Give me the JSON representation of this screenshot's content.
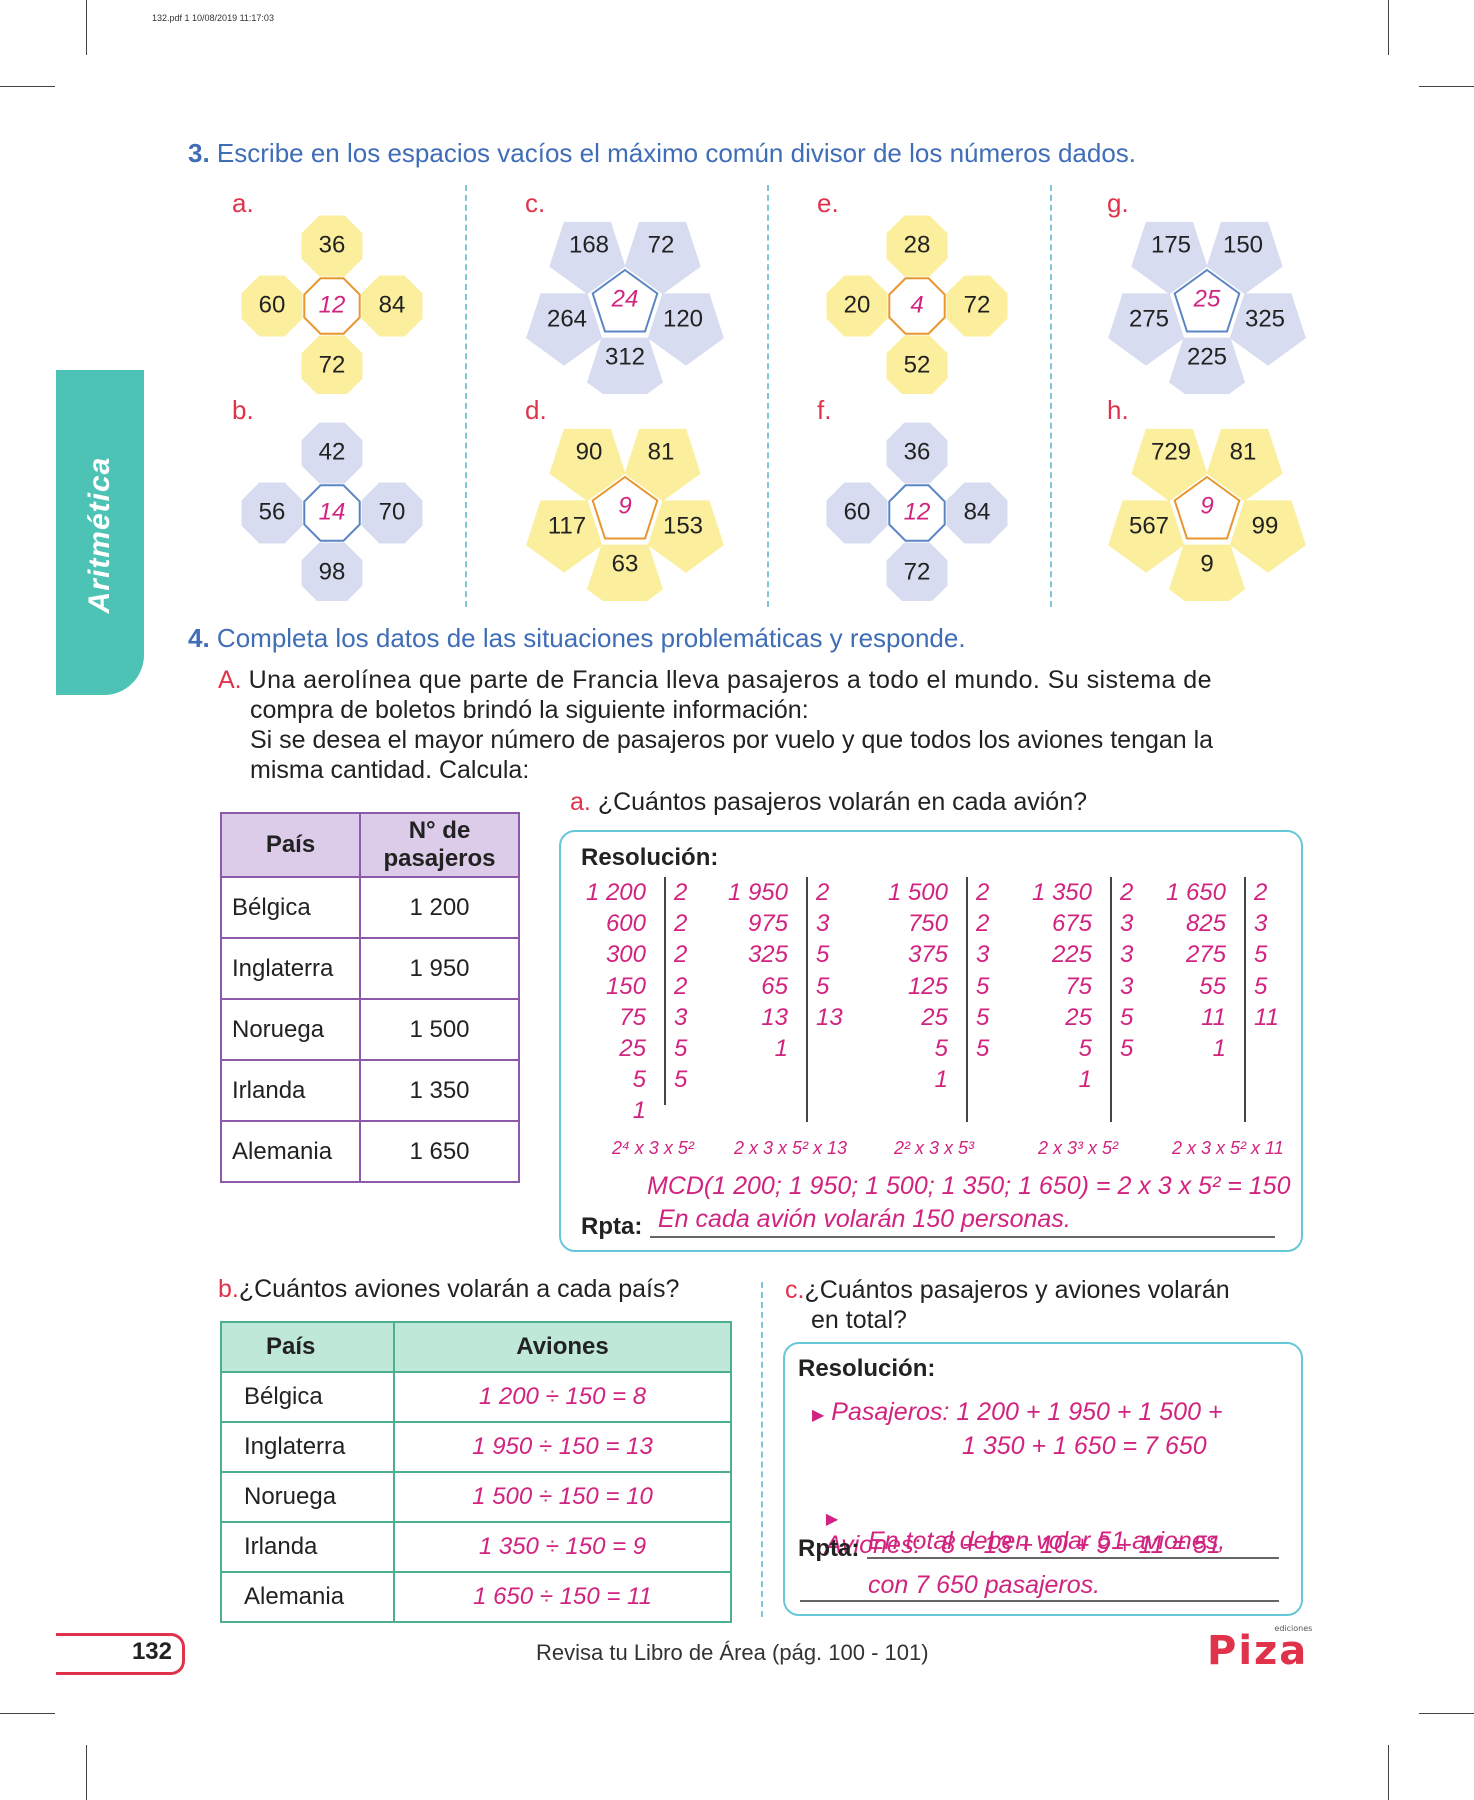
{
  "header": {
    "pdf_info": "132.pdf   1   10/08/2019   11:17:03"
  },
  "side_tab": {
    "label": "Aritmética"
  },
  "q3": {
    "number": "3.",
    "text": "Escribe en los espacios vacíos el máximo común divisor de los números dados.",
    "figures": [
      {
        "label": "a.",
        "shape": "cross",
        "color": "yellow",
        "numbers": [
          "36",
          "60",
          "84",
          "72"
        ],
        "answer": "12"
      },
      {
        "label": "b.",
        "shape": "cross",
        "color": "blue",
        "numbers": [
          "42",
          "56",
          "70",
          "98"
        ],
        "answer": "14"
      },
      {
        "label": "c.",
        "shape": "pentagon",
        "color": "blue",
        "numbers": [
          "168",
          "72",
          "264",
          "120",
          "312"
        ],
        "answer": "24"
      },
      {
        "label": "d.",
        "shape": "pentagon",
        "color": "yellow",
        "numbers": [
          "90",
          "81",
          "117",
          "153",
          "63"
        ],
        "answer": "9"
      },
      {
        "label": "e.",
        "shape": "cross",
        "color": "yellow",
        "numbers": [
          "28",
          "20",
          "72",
          "52"
        ],
        "answer": "4"
      },
      {
        "label": "f.",
        "shape": "cross",
        "color": "blue",
        "numbers": [
          "36",
          "60",
          "84",
          "72"
        ],
        "answer": "12"
      },
      {
        "label": "g.",
        "shape": "pentagon",
        "color": "blue",
        "numbers": [
          "175",
          "150",
          "275",
          "325",
          "225"
        ],
        "answer": "25"
      },
      {
        "label": "h.",
        "shape": "pentagon",
        "color": "yellow",
        "numbers": [
          "729",
          "81",
          "567",
          "99",
          "9"
        ],
        "answer": "9"
      }
    ]
  },
  "q4": {
    "number": "4.",
    "text": "Completa los datos de las situaciones problemáticas y responde.",
    "A_label": "A.",
    "A_line1": "Una aerolínea que parte de Francia lleva pasajeros a todo el mundo. Su sistema de",
    "A_line2": "compra de boletos brindó la siguiente información:",
    "A_line3": "Si se desea el mayor número de pasajeros por vuelo y que todos los aviones tengan la",
    "A_line4": "misma cantidad. Calcula:",
    "table1": {
      "headers": [
        "País",
        "N° de pasajeros"
      ],
      "rows": [
        [
          "Bélgica",
          "1 200"
        ],
        [
          "Inglaterra",
          "1 950"
        ],
        [
          "Noruega",
          "1 500"
        ],
        [
          "Irlanda",
          "1 350"
        ],
        [
          "Alemania",
          "1 650"
        ]
      ]
    },
    "a": {
      "label": "a.",
      "question": "¿Cuántos pasajeros volarán en cada avión?",
      "resolution_label": "Resolución:",
      "decompositions": [
        {
          "left": [
            "1 200",
            "600",
            "300",
            "150",
            "75",
            "25",
            "5",
            "1"
          ],
          "right": [
            "2",
            "2",
            "2",
            "2",
            "3",
            "5",
            "5"
          ],
          "factors": "2⁴ x 3 x 5²"
        },
        {
          "left": [
            "1 950",
            "975",
            "325",
            "65",
            "13",
            "1"
          ],
          "right": [
            "2",
            "3",
            "5",
            "5",
            "13"
          ],
          "factors": "2 x 3 x 5² x 13"
        },
        {
          "left": [
            "1 500",
            "750",
            "375",
            "125",
            "25",
            "5",
            "1"
          ],
          "right": [
            "2",
            "2",
            "3",
            "5",
            "5",
            "5"
          ],
          "factors": "2² x 3 x 5³"
        },
        {
          "left": [
            "1 350",
            "675",
            "225",
            "75",
            "25",
            "5",
            "1"
          ],
          "right": [
            "2",
            "3",
            "3",
            "3",
            "5",
            "5"
          ],
          "factors": "2 x 3³ x 5²"
        },
        {
          "left": [
            "1 650",
            "825",
            "275",
            "55",
            "11",
            "1"
          ],
          "right": [
            "2",
            "3",
            "5",
            "5",
            "11"
          ],
          "factors": "2 x 3 x 5² x 11"
        }
      ],
      "mcd": "MCD(1 200; 1 950; 1 500; 1 350; 1 650) = 2 x 3 x 5² = 150",
      "rpta_label": "Rpta:",
      "rpta": "En cada avión volarán 150 personas."
    },
    "b": {
      "label": "b.",
      "question": "¿Cuántos aviones volarán a cada país?",
      "headers": [
        "País",
        "Aviones"
      ],
      "rows": [
        [
          "Bélgica",
          "1 200 ÷ 150 = 8"
        ],
        [
          "Inglaterra",
          "1 950 ÷ 150 = 13"
        ],
        [
          "Noruega",
          "1 500 ÷ 150 = 10"
        ],
        [
          "Irlanda",
          "1 350 ÷ 150 = 9"
        ],
        [
          "Alemania",
          "1 650 ÷ 150 = 11"
        ]
      ]
    },
    "c": {
      "label": "c.",
      "question_line1": "¿Cuántos pasajeros y aviones volarán",
      "question_line2": "en total?",
      "resolution_label": "Resolución:",
      "pasajeros_line1": "Pasajeros: 1 200 + 1 950 + 1 500 +",
      "pasajeros_line2": "1 350 + 1 650 = 7 650",
      "aviones": "Aviones:   8 + 13 + 10 + 9 + 11 = 51",
      "rpta_label": "Rpta:",
      "rpta_line1": "En total deben volar 51 aviones,",
      "rpta_line2": "con 7 650 pasajeros."
    }
  },
  "footer": {
    "page_number": "132",
    "text": "Revisa tu Libro de Área (pág. 100 - 101)",
    "logo": "Piza",
    "logo_sub": "ediciones"
  }
}
